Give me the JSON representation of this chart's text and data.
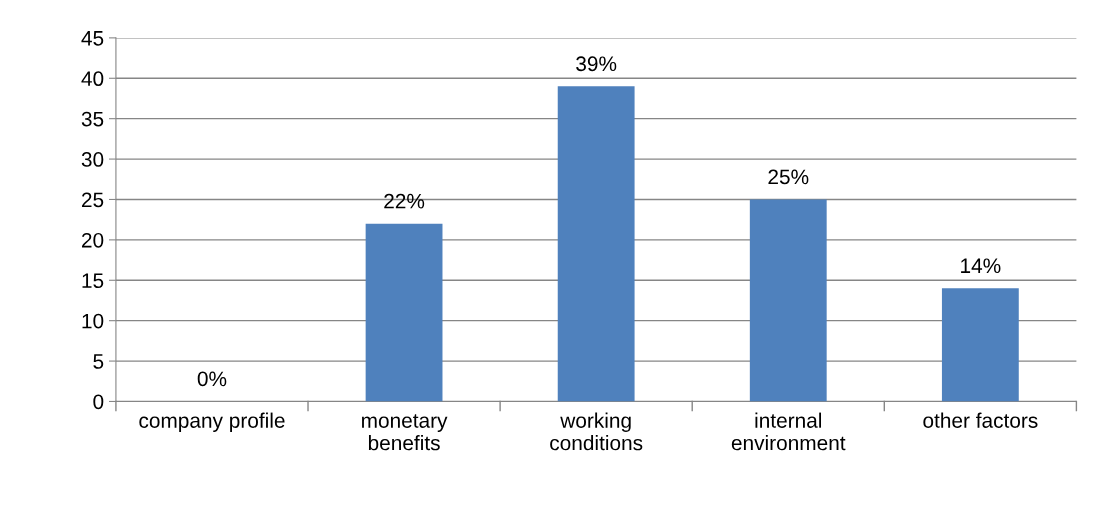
{
  "chart_data": {
    "type": "bar",
    "categories": [
      "company profile",
      "monetary\nbenefits",
      "working\nconditions",
      "internal\nenvironment",
      "other factors"
    ],
    "values": [
      0,
      22,
      39,
      25,
      14
    ],
    "value_labels": [
      "0%",
      "22%",
      "39%",
      "25%",
      "14%"
    ],
    "color": "#4f81bd",
    "ylim": [
      0,
      45
    ],
    "yticks": [
      0,
      5,
      10,
      15,
      20,
      25,
      30,
      35,
      40,
      45
    ],
    "grid": "y"
  }
}
